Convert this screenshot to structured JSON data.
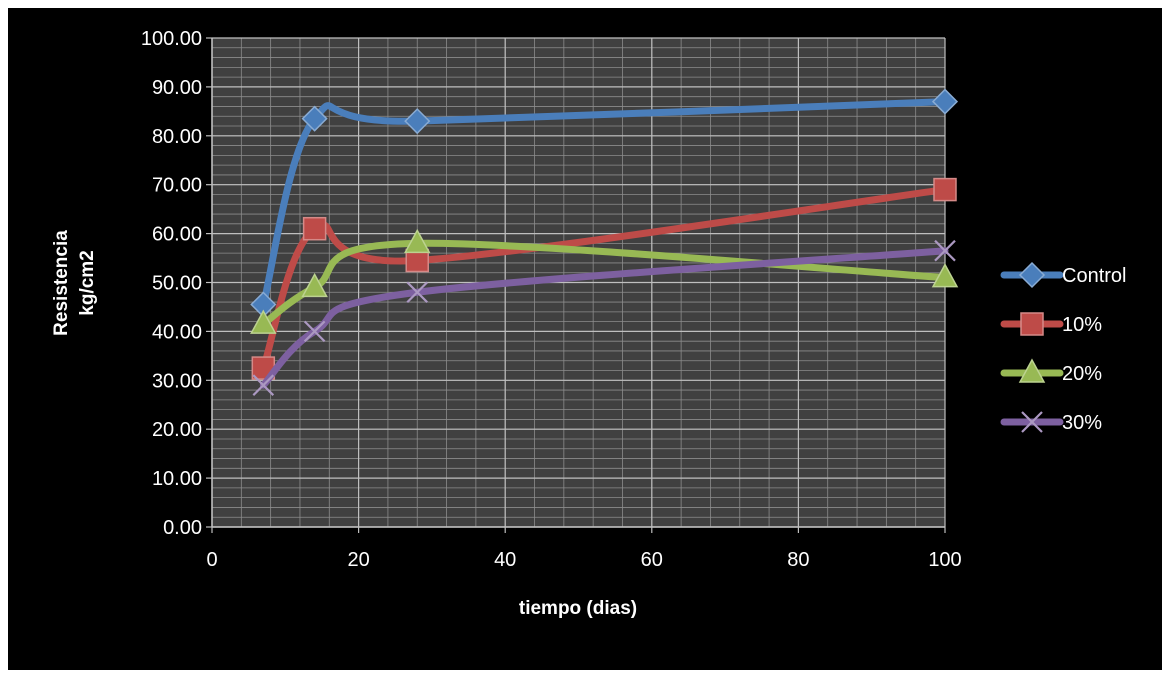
{
  "chart_data": {
    "type": "line",
    "xlabel": "tiempo (dias)",
    "ylabel_lines": [
      "Resistencia",
      "kg/cm2"
    ],
    "xlim": [
      0,
      100
    ],
    "ylim": [
      0,
      100
    ],
    "x_ticks": [
      "0",
      "20",
      "40",
      "60",
      "80",
      "100"
    ],
    "y_ticks": [
      "0.00",
      "10.00",
      "20.00",
      "30.00",
      "40.00",
      "50.00",
      "60.00",
      "70.00",
      "80.00",
      "90.00",
      "100.00"
    ],
    "grid": true,
    "legend_position": "right",
    "background": "#000000",
    "plot_background": "#404040",
    "series": [
      {
        "name": "Control",
        "color": "#4a7ebb",
        "marker": "diamond",
        "x": [
          7,
          14,
          28,
          100
        ],
        "y": [
          45.5,
          83.5,
          83.0,
          87.0
        ]
      },
      {
        "name": "10%",
        "color": "#be4b48",
        "marker": "square",
        "x": [
          7,
          14,
          28,
          100
        ],
        "y": [
          32.5,
          61.0,
          54.5,
          69.0
        ]
      },
      {
        "name": "20%",
        "color": "#98b954",
        "marker": "triangle",
        "x": [
          7,
          14,
          28,
          100
        ],
        "y": [
          41.5,
          49.0,
          58.0,
          51.0
        ]
      },
      {
        "name": "30%",
        "color": "#7d60a0",
        "marker": "x",
        "x": [
          7,
          14,
          28,
          100
        ],
        "y": [
          29.0,
          40.0,
          48.0,
          56.5
        ]
      }
    ]
  }
}
